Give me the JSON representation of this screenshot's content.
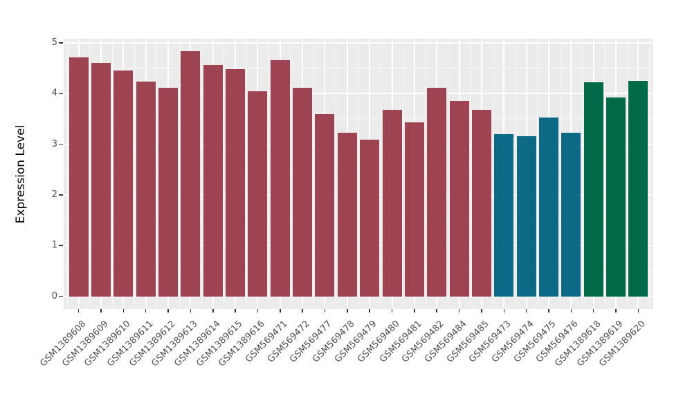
{
  "chart_data": {
    "type": "bar",
    "title": "",
    "xlabel": "",
    "ylabel": "Expression Level",
    "ylim": [
      0,
      5
    ],
    "ytick_labels": [
      "0",
      "1",
      "2",
      "3",
      "4",
      "5"
    ],
    "ytick_values": [
      0,
      1,
      2,
      3,
      4,
      5
    ],
    "yminor_values": [
      0.5,
      1.5,
      2.5,
      3.5,
      4.5
    ],
    "legend_position": "none",
    "grid": "white major and minor gridlines on gray panel",
    "categories": [
      "GSM1389608",
      "GSM1389609",
      "GSM1389610",
      "GSM1389611",
      "GSM1389612",
      "GSM1389613",
      "GSM1389614",
      "GSM1389615",
      "GSM1389616",
      "GSM569471",
      "GSM569472",
      "GSM569477",
      "GSM569478",
      "GSM569479",
      "GSM569480",
      "GSM569481",
      "GSM569482",
      "GSM569484",
      "GSM569485",
      "GSM569473",
      "GSM569474",
      "GSM569475",
      "GSM569476",
      "GSM1389618",
      "GSM1389619",
      "GSM1389620"
    ],
    "values": [
      4.71,
      4.6,
      4.46,
      4.24,
      4.12,
      4.83,
      4.57,
      4.48,
      4.05,
      4.66,
      4.12,
      3.59,
      3.22,
      3.09,
      3.68,
      3.43,
      4.12,
      3.86,
      3.68,
      3.2,
      3.16,
      3.53,
      3.22,
      4.22,
      3.92,
      4.25
    ],
    "bar_groups": [
      "maroon",
      "maroon",
      "maroon",
      "maroon",
      "maroon",
      "maroon",
      "maroon",
      "maroon",
      "maroon",
      "maroon",
      "maroon",
      "maroon",
      "maroon",
      "maroon",
      "maroon",
      "maroon",
      "maroon",
      "maroon",
      "maroon",
      "teal",
      "teal",
      "teal",
      "teal",
      "green",
      "green",
      "green"
    ],
    "group_colors": {
      "maroon": "#9E4352",
      "teal": "#0C6A87",
      "green": "#006948"
    },
    "panel_background": "#EBEBEB",
    "gridline_color": "#FFFFFF",
    "tick_label_color": "#4D4D4D",
    "axis_title_color": "#000000"
  }
}
